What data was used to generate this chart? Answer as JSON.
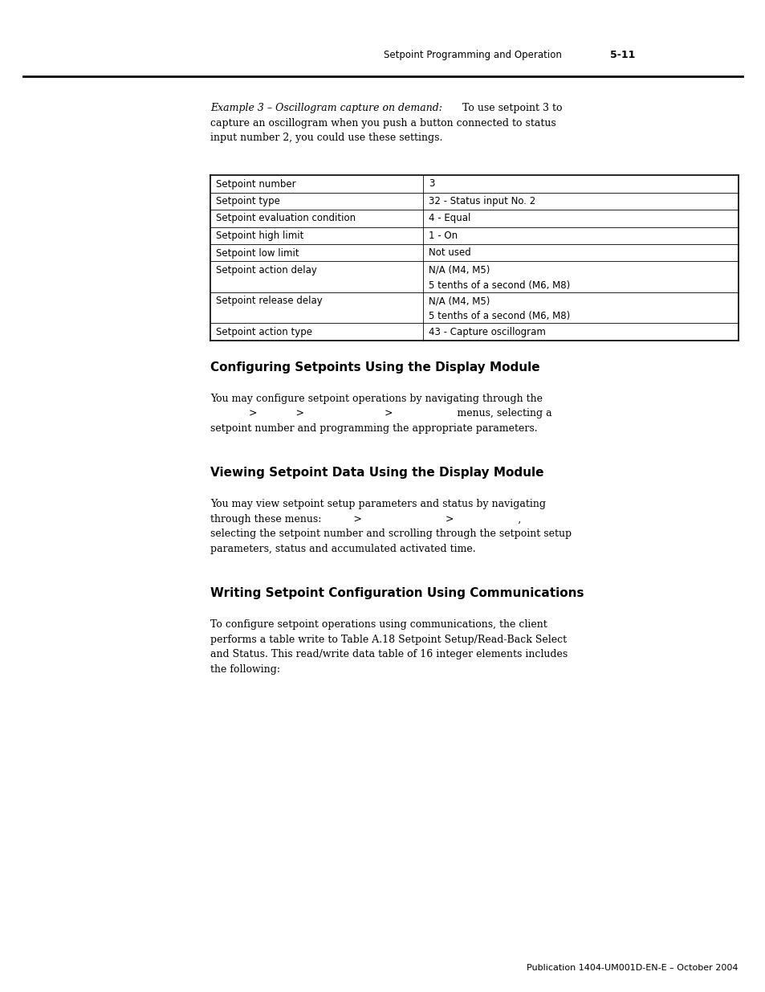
{
  "page_header_left": "Setpoint Programming and Operation",
  "page_header_right": "5-11",
  "intro_italic": "Example 3 – Oscillogram capture on demand:",
  "intro_normal_suffix": " To use setpoint 3 to",
  "intro_line2": "capture an oscillogram when you push a button connected to status",
  "intro_line3": "input number 2, you could use these settings.",
  "table_rows": [
    [
      "Setpoint number",
      "3"
    ],
    [
      "Setpoint type",
      "32 - Status input No. 2"
    ],
    [
      "Setpoint evaluation condition",
      "4 - Equal"
    ],
    [
      "Setpoint high limit",
      "1 - On"
    ],
    [
      "Setpoint low limit",
      "Not used"
    ],
    [
      "Setpoint action delay",
      "N/A (M4, M5)\n5 tenths of a second (M6, M8)"
    ],
    [
      "Setpoint release delay",
      "N/A (M4, M5)\n5 tenths of a second (M6, M8)"
    ],
    [
      "Setpoint action type",
      "43 - Capture oscillogram"
    ]
  ],
  "section1_title": "Configuring Setpoints Using the Display Module",
  "section1_lines": [
    "You may configure setpoint operations by navigating through the",
    "            >            >                         >                    menus, selecting a",
    "setpoint number and programming the appropriate parameters."
  ],
  "section2_title": "Viewing Setpoint Data Using the Display Module",
  "section2_lines": [
    "You may view setpoint setup parameters and status by navigating",
    "through these menus:          >                          >                    ,",
    "selecting the setpoint number and scrolling through the setpoint setup",
    "parameters, status and accumulated activated time."
  ],
  "section3_title": "Writing Setpoint Configuration Using Communications",
  "section3_lines": [
    "To configure setpoint operations using communications, the client",
    "performs a table write to Table A.18 Setpoint Setup/Read-Back Select",
    "and Status. This read/write data table of 16 integer elements includes",
    "the following:"
  ],
  "footer_text": "Publication 1404-UM001D-EN-E – October 2004",
  "bg_color": "#ffffff"
}
